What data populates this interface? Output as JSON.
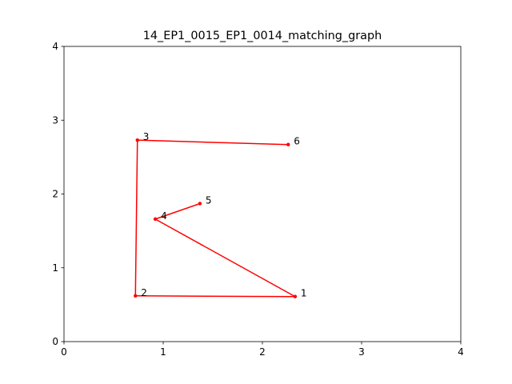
{
  "chart_data": {
    "type": "line",
    "title": "14_EP1_0015_EP1_0014_matching_graph",
    "xlabel": "",
    "ylabel": "",
    "xlim": [
      0,
      4
    ],
    "ylim": [
      0,
      4
    ],
    "xticks": [
      "0",
      "1",
      "2",
      "3",
      "4"
    ],
    "yticks": [
      "0",
      "1",
      "2",
      "3",
      "4"
    ],
    "grid": false,
    "color": "#ff0000",
    "points": [
      {
        "label": "1",
        "x": 2.33,
        "y": 0.61
      },
      {
        "label": "2",
        "x": 0.72,
        "y": 0.62
      },
      {
        "label": "3",
        "x": 0.74,
        "y": 2.73
      },
      {
        "label": "4",
        "x": 0.92,
        "y": 1.66
      },
      {
        "label": "5",
        "x": 1.37,
        "y": 1.87
      },
      {
        "label": "6",
        "x": 2.26,
        "y": 2.67
      }
    ],
    "edges": [
      [
        6,
        3
      ],
      [
        3,
        2
      ],
      [
        2,
        1
      ],
      [
        1,
        4
      ],
      [
        4,
        5
      ]
    ]
  }
}
